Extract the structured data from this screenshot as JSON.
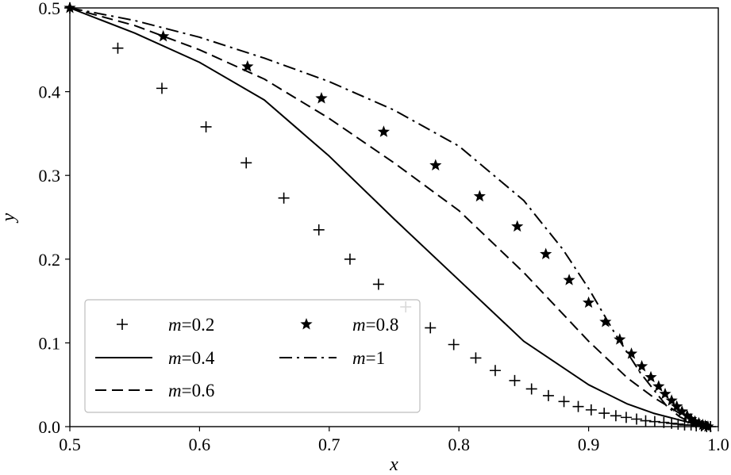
{
  "chart_data": {
    "type": "line",
    "xlabel": "x",
    "ylabel": "y",
    "xlim": [
      0.5,
      1.0
    ],
    "ylim": [
      0.0,
      0.5
    ],
    "xticks": [
      "0.5",
      "0.6",
      "0.7",
      "0.8",
      "0.9",
      "1.0"
    ],
    "yticks": [
      "0.0",
      "0.1",
      "0.2",
      "0.3",
      "0.4",
      "0.5"
    ],
    "grid": false,
    "legend": {
      "placement": "lower-left",
      "columns": 2
    },
    "series": [
      {
        "name_prefix": "m",
        "name_value": "=0.2",
        "style": "plus-markers",
        "x": [
          0.5,
          0.537,
          0.571,
          0.605,
          0.636,
          0.665,
          0.692,
          0.716,
          0.738,
          0.759,
          0.778,
          0.796,
          0.813,
          0.828,
          0.843,
          0.856,
          0.869,
          0.881,
          0.892,
          0.902,
          0.912,
          0.921,
          0.929,
          0.937,
          0.944,
          0.951,
          0.958,
          0.964,
          0.969,
          0.974,
          0.979,
          0.983,
          0.987,
          0.991,
          0.994
        ],
        "y": [
          0.5,
          0.452,
          0.404,
          0.358,
          0.315,
          0.273,
          0.235,
          0.2,
          0.17,
          0.143,
          0.118,
          0.098,
          0.082,
          0.067,
          0.055,
          0.045,
          0.037,
          0.03,
          0.024,
          0.02,
          0.016,
          0.013,
          0.011,
          0.009,
          0.007,
          0.006,
          0.005,
          0.004,
          0.003,
          0.002,
          0.002,
          0.001,
          0.001,
          0.0,
          0.0
        ]
      },
      {
        "name_prefix": "m",
        "name_value": "=0.4",
        "style": "solid",
        "x": [
          0.5,
          0.55,
          0.6,
          0.65,
          0.7,
          0.75,
          0.8,
          0.85,
          0.9,
          0.93,
          0.95,
          0.97,
          0.98,
          0.99,
          0.995
        ],
        "y": [
          0.5,
          0.47,
          0.435,
          0.39,
          0.323,
          0.248,
          0.175,
          0.102,
          0.05,
          0.027,
          0.016,
          0.008,
          0.004,
          0.001,
          0.0
        ]
      },
      {
        "name_prefix": "m",
        "name_value": "=0.6",
        "style": "dashed",
        "x": [
          0.5,
          0.55,
          0.6,
          0.65,
          0.7,
          0.75,
          0.8,
          0.85,
          0.9,
          0.93,
          0.95,
          0.97,
          0.98,
          0.99,
          0.995
        ],
        "y": [
          0.5,
          0.479,
          0.45,
          0.415,
          0.368,
          0.315,
          0.258,
          0.184,
          0.102,
          0.058,
          0.035,
          0.016,
          0.008,
          0.002,
          0.0
        ]
      },
      {
        "name_prefix": "m",
        "name_value": "=0.8",
        "style": "star-markers",
        "x": [
          0.5,
          0.572,
          0.637,
          0.694,
          0.742,
          0.782,
          0.816,
          0.845,
          0.867,
          0.885,
          0.9,
          0.913,
          0.924,
          0.933,
          0.941,
          0.948,
          0.954,
          0.959,
          0.964,
          0.968,
          0.972,
          0.976,
          0.979,
          0.982,
          0.985,
          0.988,
          0.99,
          0.992
        ],
        "y": [
          0.5,
          0.466,
          0.43,
          0.392,
          0.352,
          0.312,
          0.275,
          0.239,
          0.206,
          0.175,
          0.148,
          0.125,
          0.104,
          0.087,
          0.072,
          0.059,
          0.048,
          0.039,
          0.031,
          0.024,
          0.018,
          0.013,
          0.009,
          0.006,
          0.004,
          0.002,
          0.001,
          0.0
        ]
      },
      {
        "name_prefix": "m",
        "name_value": "=1",
        "style": "dash-dot",
        "x": [
          0.5,
          0.55,
          0.6,
          0.65,
          0.7,
          0.75,
          0.8,
          0.85,
          0.88,
          0.9,
          0.92,
          0.94,
          0.96,
          0.97,
          0.98,
          0.99,
          0.995
        ],
        "y": [
          0.5,
          0.485,
          0.465,
          0.44,
          0.412,
          0.378,
          0.335,
          0.27,
          0.212,
          0.165,
          0.112,
          0.064,
          0.025,
          0.012,
          0.004,
          0.001,
          0.0
        ]
      }
    ]
  }
}
